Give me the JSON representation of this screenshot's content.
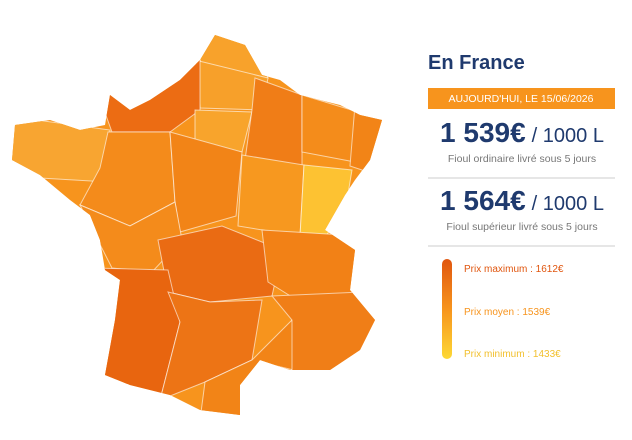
{
  "header": {
    "title": "En France"
  },
  "date_badge": "AUJOURD'HUI, LE 15/06/2026",
  "prices": [
    {
      "price": "1 539€",
      "unit": "/ 1000 L",
      "label": "Fioul ordinaire livré sous 5 jours"
    },
    {
      "price": "1 564€",
      "unit": "/ 1000 L",
      "label": "Fioul supérieur livré sous 5 jours"
    }
  ],
  "legend": [
    {
      "label": "Prix maximum : 1612€"
    },
    {
      "label": "Prix moyen : 1539€"
    },
    {
      "label": "Prix minimum : 1433€"
    }
  ]
}
